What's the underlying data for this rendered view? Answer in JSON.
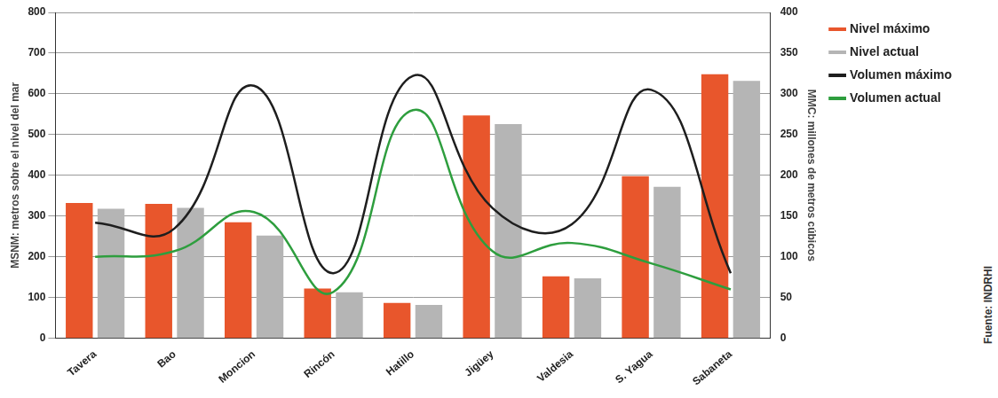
{
  "chart_data": {
    "type": "bar",
    "y_label": "MSNM: metros sobre el nivel del mar",
    "y2_label": "MMC: millones de metros cúbicos",
    "source": "Fuente: INDRHI",
    "categories": [
      "Tavera",
      "Bao",
      "Moncion",
      "Rincón",
      "Hatillo",
      "Jigüey",
      "Valdesia",
      "S. Yagua",
      "Sabaneta"
    ],
    "series": [
      {
        "name": "Nivel máximo",
        "type": "bar",
        "color": "#e8562c",
        "values": [
          332,
          330,
          285,
          122,
          87,
          547,
          152,
          398,
          648
        ]
      },
      {
        "name": "Nivel actual",
        "type": "bar",
        "color": "#b5b5b5",
        "values": [
          318,
          320,
          252,
          113,
          82,
          526,
          147,
          372,
          632
        ]
      },
      {
        "name": "Volumen máximo",
        "type": "line",
        "axis": "y2",
        "color": "#1e1e1e",
        "values": [
          142,
          135,
          310,
          80,
          322,
          160,
          140,
          305,
          80
        ]
      },
      {
        "name": "Volumen actual",
        "type": "line",
        "axis": "y2",
        "color": "#2e9e3e",
        "values": [
          100,
          107,
          155,
          57,
          280,
          107,
          117,
          92,
          60
        ]
      }
    ],
    "ylim": [
      0,
      800
    ],
    "yticks": [
      0,
      100,
      200,
      300,
      400,
      500,
      600,
      700,
      800
    ],
    "y2lim": [
      0,
      400
    ],
    "y2ticks": [
      0,
      50,
      100,
      150,
      200,
      250,
      300,
      350,
      400
    ],
    "grid": true,
    "legend": "right"
  }
}
